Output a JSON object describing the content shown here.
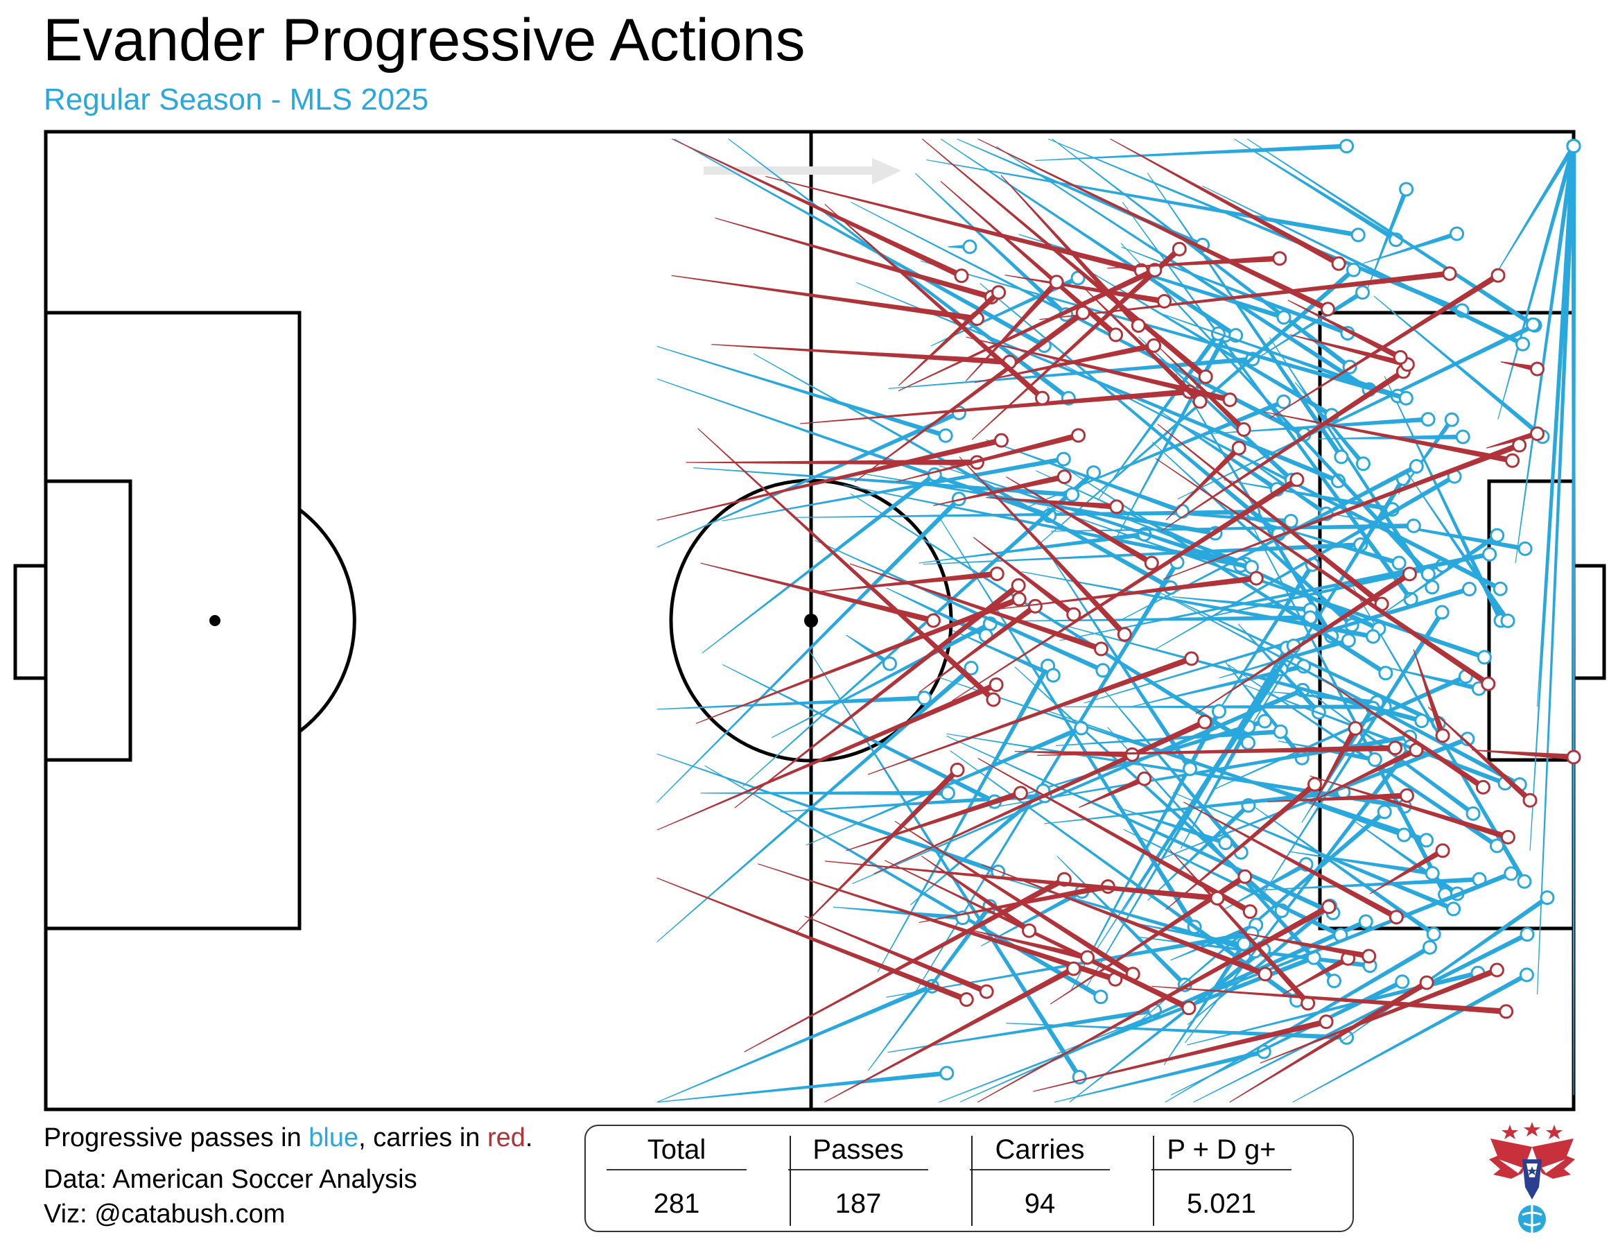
{
  "header": {
    "title": "Evander Progressive Actions",
    "subtitle": "Regular Season - MLS 2025"
  },
  "colors": {
    "pass": "#29a8dd",
    "carry": "#b0333a",
    "pitch_lines": "#000000",
    "direction_arrow": "#e6e6e6"
  },
  "notes": {
    "legend_prefix": "Progressive passes in ",
    "legend_blue": "blue",
    "legend_mid": ", carries in ",
    "legend_red": "red",
    "legend_end": ".",
    "data_source": "Data: American Soccer Analysis",
    "viz_credit": "Viz: @catabush.com"
  },
  "stats_table": {
    "headers": [
      "Total",
      "Passes",
      "Carries",
      "P + D g+"
    ],
    "values": [
      "281",
      "187",
      "94",
      "5.021"
    ]
  },
  "logo": {
    "icon": "eagle-soccer-logo-icon"
  },
  "chart_data": {
    "type": "pitch-arrows",
    "pitch": {
      "length": 105,
      "width": 68,
      "attack_direction": "right"
    },
    "series": [
      {
        "name": "Progressive passes",
        "color": "#29a8dd",
        "count": 187,
        "segments_sample": [
          [
            68.0,
            2.0,
            89.4,
            1.0
          ],
          [
            90.8,
            11.0,
            93.5,
            4.0
          ],
          [
            62.0,
            8.0,
            63.5,
            8.0
          ],
          [
            99.6,
            10.0,
            105.0,
            1.0
          ],
          [
            99.8,
            20.0,
            105.0,
            1.0
          ],
          [
            101.0,
            30.0,
            105.0,
            1.0
          ],
          [
            102.5,
            40.0,
            105.0,
            1.0
          ],
          [
            102.0,
            50.0,
            105.0,
            1.0
          ],
          [
            102.5,
            60.0,
            105.0,
            1.0
          ],
          [
            105.0,
            67.0,
            105.0,
            1.0
          ],
          [
            45.0,
            46.0,
            62.0,
            46.0
          ],
          [
            66.0,
            62.0,
            89.4,
            63.0
          ],
          [
            75.0,
            56.0,
            91.0,
            58.0
          ],
          [
            90.0,
            48.0,
            97.0,
            53.0
          ],
          [
            70.0,
            40.0,
            92.0,
            40.0
          ],
          [
            55.0,
            35.0,
            58.0,
            37.0
          ],
          [
            80.0,
            21.0,
            95.0,
            20.0
          ],
          [
            92.0,
            17.0,
            100.0,
            34.0
          ],
          [
            60.0,
            30.0,
            75.5,
            28.0
          ],
          [
            83.0,
            27.0,
            93.0,
            30.0
          ]
        ]
      },
      {
        "name": "Progressive carries",
        "color": "#b0333a",
        "count": 94,
        "segments_sample": [
          [
            46.0,
            6.0,
            65.0,
            11.5
          ],
          [
            43.0,
            10.0,
            64.0,
            13.0
          ],
          [
            44.0,
            23.0,
            64.0,
            23.0
          ],
          [
            45.0,
            30.0,
            61.0,
            34.0
          ],
          [
            60.0,
            39.0,
            68.0,
            33.0
          ],
          [
            55.0,
            50.0,
            67.0,
            46.0
          ],
          [
            60.0,
            55.0,
            73.0,
            52.5
          ],
          [
            48.0,
            64.0,
            70.0,
            52.0
          ],
          [
            71.0,
            47.0,
            75.5,
            45.0
          ],
          [
            87.0,
            47.0,
            90.0,
            41.5
          ],
          [
            95.0,
            40.0,
            102.0,
            46.5
          ],
          [
            91.0,
            53.0,
            96.0,
            50.0
          ],
          [
            85.0,
            60.0,
            89.5,
            57.5
          ],
          [
            100.0,
            16.0,
            102.5,
            16.5
          ],
          [
            99.0,
            22.0,
            102.5,
            21.0
          ],
          [
            77.0,
            27.0,
            82.0,
            22.0
          ],
          [
            61.0,
            26.0,
            70.0,
            24.0
          ],
          [
            66.0,
            24.0,
            76.0,
            30.0
          ],
          [
            98.0,
            43.0,
            105.0,
            43.5
          ],
          [
            94.0,
            36.0,
            96.0,
            42.0
          ]
        ]
      }
    ],
    "legend": "text below pitch",
    "grid": false
  }
}
